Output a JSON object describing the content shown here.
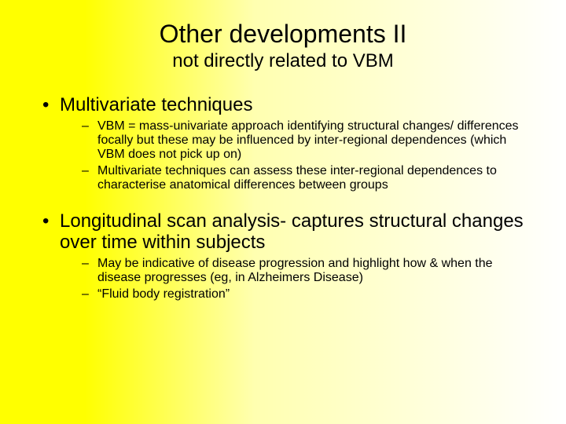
{
  "slide": {
    "background_gradient": {
      "start": "#ffff00",
      "end": "#ffffff",
      "direction": "to right"
    },
    "text_color": "#000000",
    "font_family": "Arial",
    "title": "Other developments II",
    "title_fontsize": 32,
    "subtitle": "not directly related to VBM",
    "subtitle_fontsize": 24,
    "bullets": [
      {
        "text": "Multivariate techniques",
        "fontsize": 24,
        "sub": [
          "VBM = mass-univariate approach identifying structural changes/ differences focally but these may be influenced by inter-regional dependences (which VBM does not pick up on)",
          "Multivariate techniques  can assess these inter-regional dependences to characterise anatomical differences between groups"
        ],
        "sub_fontsize": 16
      },
      {
        "text": "Longitudinal scan analysis- captures structural changes over time within subjects",
        "fontsize": 24,
        "sub": [
          "May be indicative of disease progression and highlight how & when the disease progresses (eg, in Alzheimers Disease)",
          "“Fluid body registration”"
        ],
        "sub_fontsize": 16
      }
    ]
  }
}
